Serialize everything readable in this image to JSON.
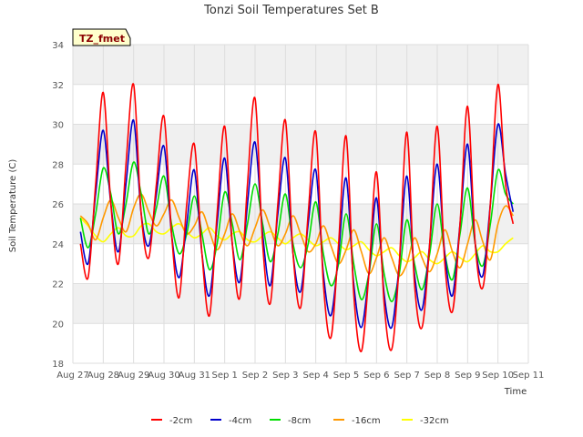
{
  "chart_data": {
    "type": "line",
    "title": "Tonzi Soil Temperatures Set B",
    "xlabel": "Time",
    "ylabel": "Soil Temperature (C)",
    "badge": "TZ_fmet",
    "x_ticks": [
      "Aug 27",
      "Aug 28",
      "Aug 29",
      "Aug 30",
      "Aug 31",
      "Sep 1",
      "Sep 2",
      "Sep 3",
      "Sep 4",
      "Sep 5",
      "Sep 6",
      "Sep 7",
      "Sep 8",
      "Sep 9",
      "Sep 10",
      "Sep 11"
    ],
    "xlim_days": [
      0,
      15
    ],
    "ylim": [
      18,
      34
    ],
    "y_ticks": [
      18,
      20,
      22,
      24,
      26,
      28,
      30,
      32,
      34
    ],
    "grid": true,
    "legend_position": "bottom",
    "x_days": [
      0.25,
      0.5,
      0.75,
      1.0,
      1.25,
      1.5,
      1.75,
      2.0,
      2.25,
      2.5,
      2.75,
      3.0,
      3.25,
      3.5,
      3.75,
      4.0,
      4.25,
      4.5,
      4.75,
      5.0,
      5.25,
      5.5,
      5.75,
      6.0,
      6.25,
      6.5,
      6.75,
      7.0,
      7.25,
      7.5,
      7.75,
      8.0,
      8.25,
      8.5,
      8.75,
      9.0,
      9.25,
      9.5,
      9.75,
      10.0,
      10.25,
      10.5,
      10.75,
      11.0,
      11.25,
      11.5,
      11.75,
      12.0,
      12.25,
      12.5,
      12.75,
      13.0,
      13.25,
      13.5,
      13.75,
      14.0,
      14.25,
      14.5
    ],
    "series": [
      {
        "name": "-2cm",
        "color": "#ff0000",
        "values": [
          24.0,
          22.3,
          27.0,
          31.6,
          26.0,
          23.0,
          28.0,
          32.0,
          25.5,
          23.3,
          27.0,
          30.4,
          24.5,
          21.3,
          26.0,
          29.0,
          23.5,
          20.4,
          25.5,
          29.9,
          24.0,
          21.3,
          27.0,
          31.3,
          24.0,
          21.0,
          26.0,
          30.2,
          23.5,
          20.8,
          25.5,
          29.6,
          22.0,
          19.3,
          24.0,
          29.4,
          21.5,
          18.6,
          22.5,
          27.6,
          21.0,
          18.7,
          23.0,
          29.6,
          22.0,
          19.8,
          24.0,
          29.9,
          23.0,
          20.6,
          25.0,
          30.9,
          24.0,
          21.8,
          26.0,
          32.0,
          27.0,
          25.0
        ]
      },
      {
        "name": "-4cm",
        "color": "#0000cc",
        "values": [
          24.6,
          23.0,
          26.5,
          29.7,
          26.0,
          23.6,
          27.0,
          30.2,
          25.5,
          23.9,
          26.5,
          28.9,
          24.5,
          22.3,
          25.0,
          27.7,
          23.5,
          21.4,
          25.0,
          28.3,
          24.0,
          22.1,
          26.0,
          29.1,
          24.5,
          21.9,
          25.5,
          28.3,
          23.5,
          21.6,
          25.0,
          27.7,
          22.5,
          20.4,
          23.5,
          27.3,
          22.0,
          19.8,
          22.5,
          26.3,
          21.5,
          19.8,
          23.0,
          27.4,
          22.5,
          20.7,
          24.0,
          28.0,
          23.5,
          21.4,
          25.0,
          29.0,
          24.0,
          22.4,
          26.0,
          30.0,
          27.5,
          25.6
        ]
      },
      {
        "name": "-8cm",
        "color": "#00dd00",
        "values": [
          25.3,
          23.8,
          25.5,
          27.8,
          26.5,
          24.5,
          26.0,
          28.1,
          26.5,
          24.5,
          25.8,
          27.4,
          25.0,
          23.5,
          24.5,
          26.4,
          24.5,
          22.7,
          24.0,
          26.6,
          25.0,
          23.2,
          25.0,
          27.0,
          25.0,
          23.1,
          24.5,
          26.5,
          24.0,
          22.8,
          24.0,
          26.1,
          23.5,
          21.9,
          23.0,
          25.5,
          23.0,
          21.2,
          22.5,
          25.0,
          22.5,
          21.1,
          22.5,
          25.2,
          23.0,
          21.7,
          23.5,
          26.0,
          23.5,
          22.2,
          24.5,
          26.8,
          24.0,
          22.9,
          25.0,
          27.7,
          26.5,
          26.0
        ]
      },
      {
        "name": "-16cm",
        "color": "#ff9900",
        "values": [
          25.4,
          25.0,
          24.2,
          25.3,
          26.2,
          25.3,
          24.6,
          25.8,
          26.5,
          25.6,
          24.9,
          25.5,
          26.2,
          25.3,
          24.5,
          24.9,
          25.6,
          24.6,
          23.7,
          24.5,
          25.5,
          24.6,
          23.9,
          24.8,
          25.7,
          24.8,
          23.9,
          24.5,
          25.4,
          24.5,
          23.6,
          24.0,
          24.9,
          23.9,
          23.0,
          23.7,
          24.7,
          23.6,
          22.5,
          23.3,
          24.3,
          23.3,
          22.4,
          23.0,
          24.3,
          23.3,
          22.6,
          23.5,
          24.7,
          23.6,
          22.8,
          24.0,
          25.2,
          24.1,
          23.2,
          25.0,
          25.9,
          25.4
        ]
      },
      {
        "name": "-32cm",
        "color": "#ffff00",
        "values": [
          25.3,
          24.9,
          24.4,
          24.1,
          24.5,
          24.8,
          24.4,
          24.4,
          24.9,
          25.0,
          24.6,
          24.5,
          24.8,
          25.0,
          24.6,
          24.3,
          24.5,
          24.8,
          24.4,
          24.2,
          24.5,
          24.6,
          24.2,
          24.1,
          24.4,
          24.6,
          24.3,
          24.0,
          24.3,
          24.5,
          24.2,
          23.9,
          24.1,
          24.3,
          24.0,
          23.7,
          23.9,
          24.1,
          23.7,
          23.4,
          23.6,
          23.8,
          23.4,
          23.1,
          23.3,
          23.6,
          23.2,
          23.0,
          23.3,
          23.6,
          23.3,
          23.1,
          23.5,
          23.9,
          23.6,
          23.6,
          24.0,
          24.3
        ]
      }
    ]
  },
  "colors": {
    "plot_band": "#f0f0f0",
    "grid": "#dddddd",
    "badge_bg": "#ffffcc",
    "badge_text": "#8b0000"
  }
}
